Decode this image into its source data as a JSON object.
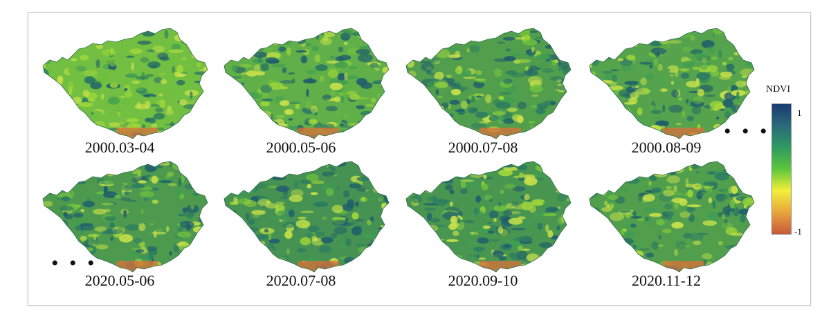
{
  "panels": [
    {
      "label": "2000.03-04",
      "greenness": 0.15
    },
    {
      "label": "2000.05-06",
      "greenness": 0.35
    },
    {
      "label": "2000.07-08",
      "greenness": 0.55
    },
    {
      "label": "2000.08-09",
      "greenness": 0.5
    },
    {
      "label": "2020.05-06",
      "greenness": 0.6
    },
    {
      "label": "2020.07-08",
      "greenness": 0.7
    },
    {
      "label": "2020.09-10",
      "greenness": 0.65
    },
    {
      "label": "2020.11-12",
      "greenness": 0.55
    }
  ],
  "ellipsis": "• • •",
  "legend": {
    "title": "NDVI",
    "max_label": "1",
    "min_label": "-1",
    "colors": [
      "#1a3a73",
      "#2a6a7a",
      "#2f9a60",
      "#5cc63c",
      "#f3ef3a",
      "#e8a53c",
      "#c8593c"
    ]
  }
}
